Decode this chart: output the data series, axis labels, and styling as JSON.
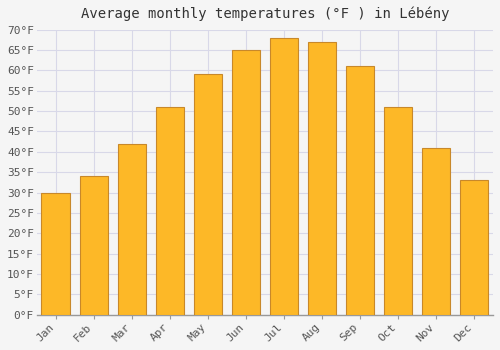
{
  "title": "Average monthly temperatures (°F ) in Lébény",
  "months": [
    "Jan",
    "Feb",
    "Mar",
    "Apr",
    "May",
    "Jun",
    "Jul",
    "Aug",
    "Sep",
    "Oct",
    "Nov",
    "Dec"
  ],
  "values": [
    30,
    34,
    42,
    51,
    59,
    65,
    68,
    67,
    61,
    51,
    41,
    33
  ],
  "bar_color": "#FDB827",
  "bar_edge_color": "#C8882A",
  "background_color": "#f5f5f5",
  "plot_bg_color": "#f5f5f5",
  "grid_color": "#d8d8e8",
  "ylim": [
    0,
    70
  ],
  "ytick_step": 5,
  "title_fontsize": 10,
  "tick_fontsize": 8,
  "font_family": "monospace"
}
